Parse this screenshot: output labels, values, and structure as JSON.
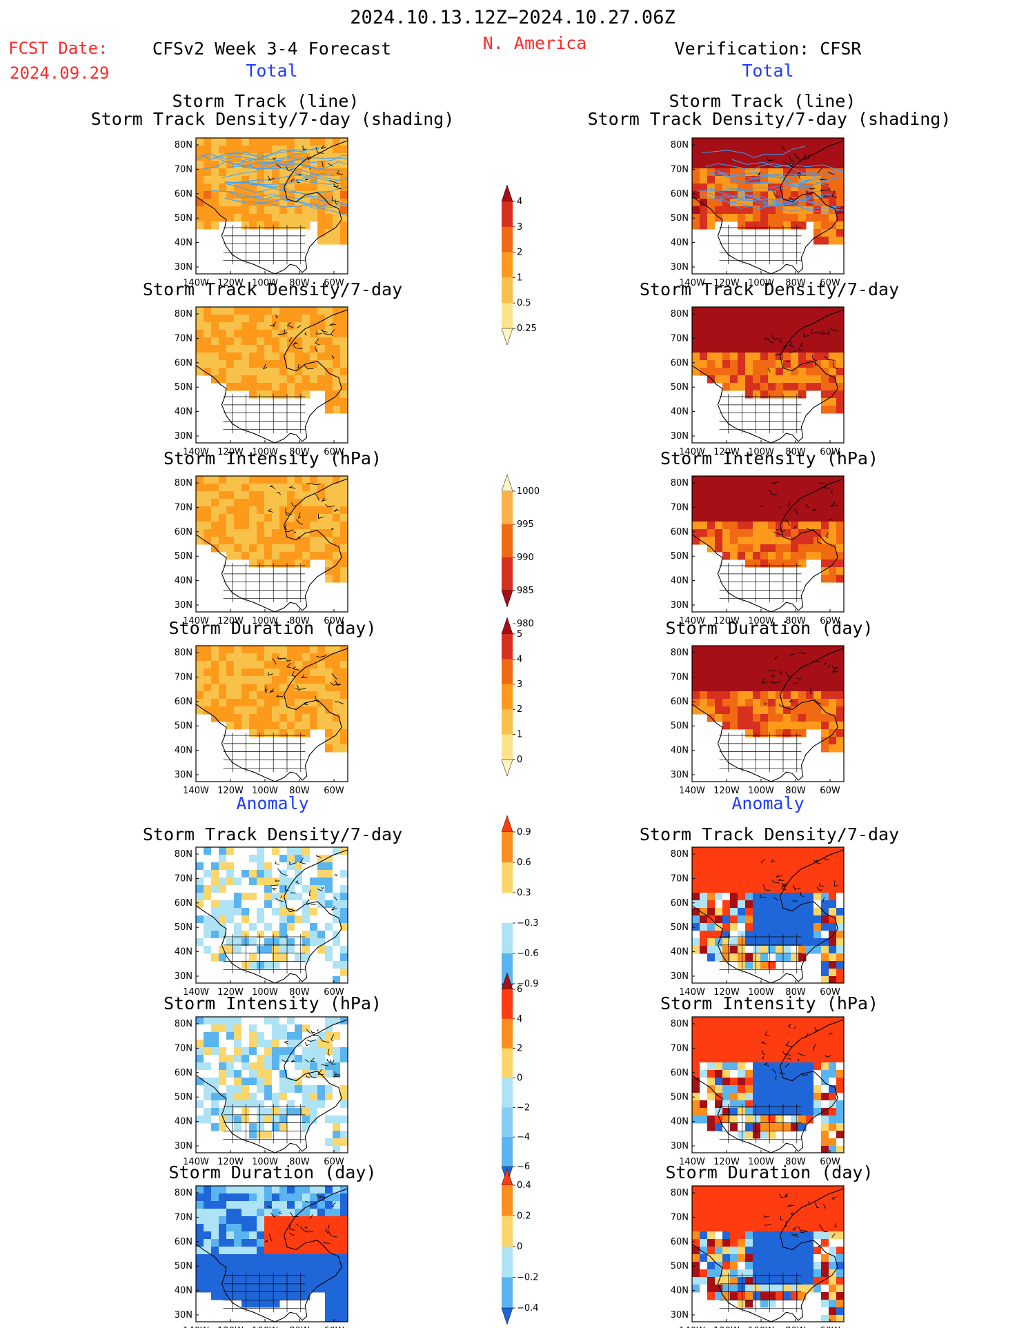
{
  "header": {
    "period": "2024.10.13.12Z−2024.10.27.06Z",
    "region": "N. America",
    "fcst_label": "FCST Date:",
    "fcst_date": "2024.09.29",
    "model": "CFSv2 Week 3-4 Forecast",
    "verification": "Verification: CFSR"
  },
  "sections": {
    "total": "Total",
    "anomaly": "Anomaly"
  },
  "panel_titles": {
    "storm_track_line": "Storm Track (line)",
    "storm_track_shading": "Storm Track Density/7-day (shading)",
    "density": "Storm Track Density/7-day",
    "intensity": "Storm Intensity (hPa)",
    "duration": "Storm Duration (day)"
  },
  "map_axes": {
    "lat_labels": [
      "80N",
      "70N",
      "60N",
      "50N",
      "40N",
      "30N"
    ],
    "lon_labels": [
      "140W",
      "120W",
      "100W",
      "80W",
      "60W"
    ]
  },
  "colorbars": [
    {
      "id": "density",
      "labels": [
        "4",
        "3",
        "2",
        "1",
        "0.5",
        "0.25"
      ],
      "colors": [
        "#a50f15",
        "#d7301f",
        "#f16913",
        "#fd9a1c",
        "#f8c24a",
        "#fde38a",
        "#fff6c2"
      ]
    },
    {
      "id": "intensity",
      "labels": [
        "1000",
        "995",
        "990",
        "985",
        "980"
      ],
      "colors": [
        "#fff6c2",
        "#fbb14a",
        "#f16913",
        "#d7301f",
        "#a50f15"
      ]
    },
    {
      "id": "duration",
      "labels": [
        "5",
        "4",
        "3",
        "2",
        "1",
        "0"
      ],
      "colors": [
        "#a50f15",
        "#d7301f",
        "#f16913",
        "#fd9a1c",
        "#f8c24a",
        "#fde38a",
        "#fff6c2"
      ]
    },
    {
      "id": "anom_density",
      "labels": [
        "0.9",
        "0.6",
        "0.3",
        "−0.3",
        "−0.6",
        "−0.9"
      ],
      "colors": [
        "#ff3b10",
        "#fd8d1c",
        "#fbd66a",
        "#ffffff",
        "#aee3f5",
        "#5ab4f0",
        "#1f66d8"
      ]
    },
    {
      "id": "anom_intensity",
      "labels": [
        "6",
        "4",
        "2",
        "0",
        "−2",
        "−4",
        "−6"
      ],
      "colors": [
        "#a50f15",
        "#ff3b10",
        "#fd8d1c",
        "#fbd66a",
        "#aee3f5",
        "#86cdf5",
        "#5ab4f0",
        "#1f66d8"
      ]
    },
    {
      "id": "anom_duration",
      "labels": [
        "0.4",
        "0.2",
        "0",
        "−0.2",
        "−0.4"
      ],
      "colors": [
        "#ff3b10",
        "#fd8d1c",
        "#fbd66a",
        "#aee3f5",
        "#5ab4f0",
        "#1f66d8"
      ]
    }
  ],
  "colors": {
    "header_red": "#ff2a2a",
    "section_blue": "#1f3cff",
    "storm_track_line": "#3aa0ff"
  }
}
